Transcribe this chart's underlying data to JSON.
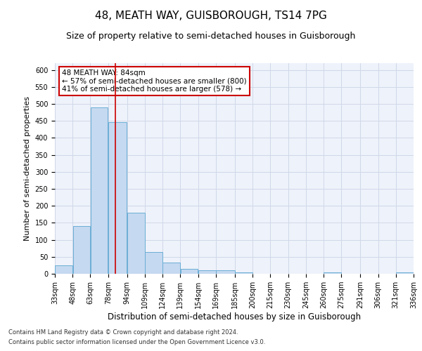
{
  "title": "48, MEATH WAY, GUISBOROUGH, TS14 7PG",
  "subtitle": "Size of property relative to semi-detached houses in Guisborough",
  "xlabel": "Distribution of semi-detached houses by size in Guisborough",
  "ylabel": "Number of semi-detached properties",
  "bar_color": "#c5d9f0",
  "bar_edge_color": "#6baed6",
  "vline_color": "#cc0000",
  "vline_x": 84,
  "annotation_title": "48 MEATH WAY: 84sqm",
  "annotation_line1": "← 57% of semi-detached houses are smaller (800)",
  "annotation_line2": "41% of semi-detached houses are larger (578) →",
  "footnote1": "Contains HM Land Registry data © Crown copyright and database right 2024.",
  "footnote2": "Contains public sector information licensed under the Open Government Licence v3.0.",
  "bin_edges": [
    33,
    48,
    63,
    78,
    94,
    109,
    124,
    139,
    154,
    169,
    185,
    200,
    215,
    230,
    245,
    260,
    275,
    291,
    306,
    321,
    336
  ],
  "counts": [
    24,
    141,
    490,
    446,
    180,
    65,
    33,
    15,
    10,
    10,
    5,
    0,
    0,
    0,
    0,
    5,
    0,
    0,
    0,
    5
  ],
  "ylim": [
    0,
    620
  ],
  "yticks": [
    0,
    50,
    100,
    150,
    200,
    250,
    300,
    350,
    400,
    450,
    500,
    550,
    600
  ],
  "grid_color": "#d0d8e8",
  "bg_color": "#eef2fa",
  "title_fontsize": 11,
  "subtitle_fontsize": 9,
  "xlabel_fontsize": 8.5,
  "ylabel_fontsize": 8,
  "tick_fontsize": 7,
  "annotation_fontsize": 7.5,
  "footnote_fontsize": 6,
  "annotation_box_edge_color": "#cc0000"
}
